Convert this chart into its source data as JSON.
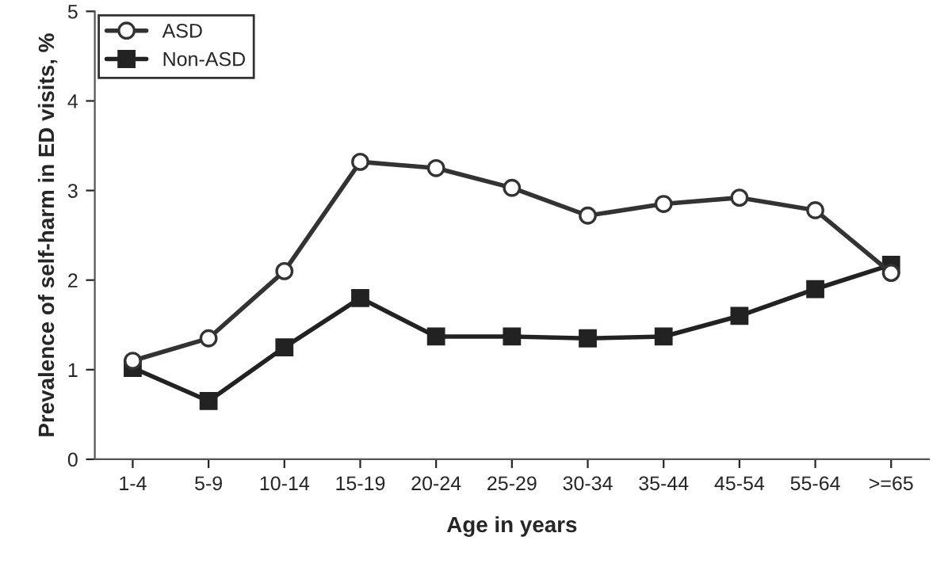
{
  "chart_data": {
    "type": "line",
    "xlabel": "Age in years",
    "ylabel": "Prevalence of self-harm in ED visits, %",
    "categories": [
      "1-4",
      "5-9",
      "10-14",
      "15-19",
      "20-24",
      "25-29",
      "30-34",
      "35-44",
      "45-54",
      "55-64",
      ">=65"
    ],
    "series": [
      {
        "name": "ASD",
        "color": "#333333",
        "marker": "circle",
        "values": [
          1.1,
          1.35,
          2.1,
          3.32,
          3.25,
          3.03,
          2.72,
          2.85,
          2.92,
          2.78,
          2.08
        ]
      },
      {
        "name": "Non-ASD",
        "color": "#222222",
        "marker": "square",
        "values": [
          1.02,
          0.65,
          1.25,
          1.8,
          1.37,
          1.37,
          1.35,
          1.37,
          1.6,
          1.9,
          2.17
        ]
      }
    ],
    "ylim": [
      0,
      5
    ],
    "yticks": [
      0,
      1,
      2,
      3,
      4,
      5
    ],
    "grid": false,
    "legend": "top left",
    "line_style": "solid"
  }
}
